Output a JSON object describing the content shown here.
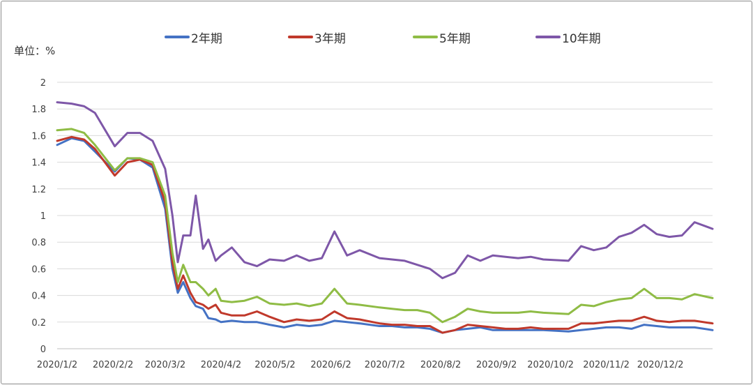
{
  "chart_data": {
    "type": "line",
    "title": "",
    "ylabel": "单位：%",
    "xlabel": "",
    "ylim": [
      0,
      2
    ],
    "yticks": [
      "0",
      "0.2",
      "0.4",
      "0.6",
      "0.8",
      "1",
      "1.2",
      "1.4",
      "1.6",
      "1.8",
      "2"
    ],
    "xticks": [
      "2020/1/2",
      "2020/2/2",
      "2020/3/2",
      "2020/4/2",
      "2020/5/2",
      "2020/6/2",
      "2020/7/2",
      "2020/8/2",
      "2020/9/2",
      "2020/10/2",
      "2020/11/2",
      "2020/12/2"
    ],
    "grid": true,
    "legend_position": "top",
    "x": [
      "2020/1/2",
      "2020/1/10",
      "2020/1/17",
      "2020/1/23",
      "2020/2/3",
      "2020/2/10",
      "2020/2/17",
      "2020/2/24",
      "2020/3/2",
      "2020/3/6",
      "2020/3/9",
      "2020/3/12",
      "2020/3/16",
      "2020/3/19",
      "2020/3/23",
      "2020/3/26",
      "2020/3/30",
      "2020/4/2",
      "2020/4/8",
      "2020/4/15",
      "2020/4/22",
      "2020/4/29",
      "2020/5/7",
      "2020/5/14",
      "2020/5/21",
      "2020/5/28",
      "2020/6/4",
      "2020/6/11",
      "2020/6/18",
      "2020/6/29",
      "2020/7/6",
      "2020/7/13",
      "2020/7/20",
      "2020/7/27",
      "2020/8/3",
      "2020/8/10",
      "2020/8/17",
      "2020/8/24",
      "2020/8/31",
      "2020/9/7",
      "2020/9/14",
      "2020/9/21",
      "2020/9/28",
      "2020/10/12",
      "2020/10/19",
      "2020/10/26",
      "2020/11/2",
      "2020/11/9",
      "2020/11/16",
      "2020/11/23",
      "2020/11/30",
      "2020/12/7",
      "2020/12/14",
      "2020/12/21",
      "2020/12/31"
    ],
    "series": [
      {
        "name": "2年期",
        "color": "#4472c4",
        "values": [
          1.53,
          1.58,
          1.56,
          1.48,
          1.33,
          1.43,
          1.42,
          1.36,
          1.05,
          0.6,
          0.42,
          0.5,
          0.38,
          0.32,
          0.3,
          0.23,
          0.22,
          0.2,
          0.21,
          0.2,
          0.2,
          0.18,
          0.16,
          0.18,
          0.17,
          0.18,
          0.21,
          0.2,
          0.19,
          0.17,
          0.17,
          0.16,
          0.16,
          0.15,
          0.12,
          0.14,
          0.15,
          0.16,
          0.14,
          0.14,
          0.14,
          0.14,
          0.14,
          0.13,
          0.14,
          0.15,
          0.16,
          0.16,
          0.15,
          0.18,
          0.17,
          0.16,
          0.16,
          0.16,
          0.14
        ]
      },
      {
        "name": "3年期",
        "color": "#c0392b",
        "values": [
          1.56,
          1.59,
          1.57,
          1.5,
          1.3,
          1.4,
          1.42,
          1.38,
          1.1,
          0.65,
          0.45,
          0.55,
          0.42,
          0.35,
          0.33,
          0.3,
          0.33,
          0.27,
          0.25,
          0.25,
          0.28,
          0.24,
          0.2,
          0.22,
          0.21,
          0.22,
          0.28,
          0.23,
          0.22,
          0.19,
          0.18,
          0.18,
          0.17,
          0.17,
          0.12,
          0.14,
          0.18,
          0.17,
          0.16,
          0.15,
          0.15,
          0.16,
          0.15,
          0.15,
          0.19,
          0.19,
          0.2,
          0.21,
          0.21,
          0.24,
          0.21,
          0.2,
          0.21,
          0.21,
          0.19
        ]
      },
      {
        "name": "5年期",
        "color": "#8fbc45",
        "values": [
          1.64,
          1.65,
          1.62,
          1.53,
          1.34,
          1.43,
          1.43,
          1.4,
          1.15,
          0.72,
          0.5,
          0.63,
          0.5,
          0.5,
          0.45,
          0.4,
          0.45,
          0.36,
          0.35,
          0.36,
          0.39,
          0.34,
          0.33,
          0.34,
          0.32,
          0.34,
          0.45,
          0.34,
          0.33,
          0.31,
          0.3,
          0.29,
          0.29,
          0.27,
          0.2,
          0.24,
          0.3,
          0.28,
          0.27,
          0.27,
          0.27,
          0.28,
          0.27,
          0.26,
          0.33,
          0.32,
          0.35,
          0.37,
          0.38,
          0.45,
          0.38,
          0.38,
          0.37,
          0.41,
          0.38
        ]
      },
      {
        "name": "10年期",
        "color": "#7e57a8",
        "values": [
          1.85,
          1.84,
          1.82,
          1.77,
          1.52,
          1.62,
          1.62,
          1.56,
          1.35,
          1.0,
          0.65,
          0.85,
          0.85,
          1.15,
          0.75,
          0.82,
          0.66,
          0.7,
          0.76,
          0.65,
          0.62,
          0.67,
          0.66,
          0.7,
          0.66,
          0.68,
          0.88,
          0.7,
          0.74,
          0.68,
          0.67,
          0.66,
          0.63,
          0.6,
          0.53,
          0.57,
          0.7,
          0.66,
          0.7,
          0.69,
          0.68,
          0.69,
          0.67,
          0.66,
          0.77,
          0.74,
          0.76,
          0.84,
          0.87,
          0.93,
          0.86,
          0.84,
          0.85,
          0.95,
          0.9
        ]
      }
    ]
  }
}
